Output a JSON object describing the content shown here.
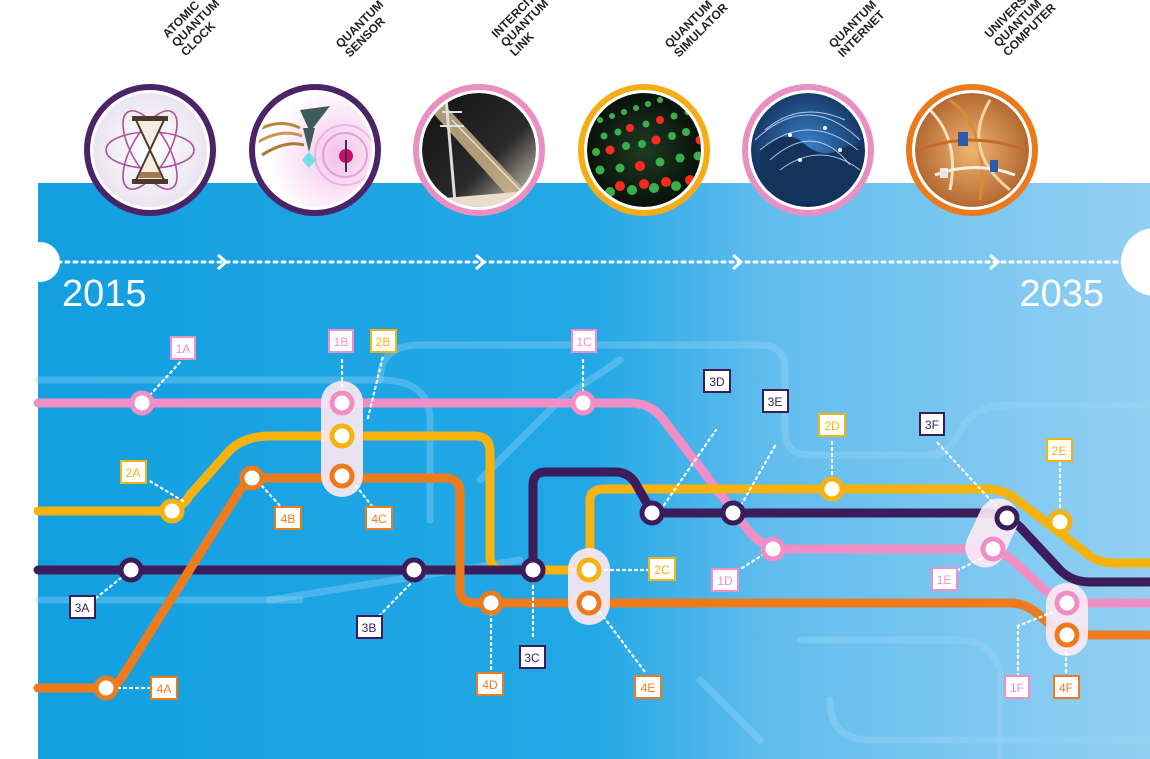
{
  "header": {
    "technologies": [
      {
        "label": [
          "ATOMIC",
          "QUANTUM",
          "CLOCK"
        ],
        "ring_color": "#4a2466",
        "icon": "atomic-clock-icon"
      },
      {
        "label": [
          "QUANTUM",
          "SENSOR"
        ],
        "ring_color": "#4a2466",
        "icon": "quantum-sensor-icon"
      },
      {
        "label": [
          "INTERCITY",
          "QUANTUM",
          "LINK"
        ],
        "ring_color": "#e98fc2",
        "icon": "quantum-link-icon"
      },
      {
        "label": [
          "QUANTUM",
          "SIMULATOR"
        ],
        "ring_color": "#f5ad17",
        "icon": "quantum-simulator-icon"
      },
      {
        "label": [
          "QUANTUM",
          "INTERNET"
        ],
        "ring_color": "#e98fc2",
        "icon": "quantum-internet-icon"
      },
      {
        "label": [
          "UNIVERSAL",
          "QUANTUM",
          "COMPUTER"
        ],
        "ring_color": "#ea7a1c",
        "icon": "quantum-computer-icon"
      }
    ]
  },
  "timeline": {
    "start_year": "2015",
    "end_year": "2035"
  },
  "colors": {
    "line1": "#f08fc5",
    "line2": "#f6b20f",
    "line3": "#3c1d5c",
    "line4": "#ec7b1e",
    "background_left": "#129fe0",
    "background_right": "#8ccdf0"
  },
  "lines": [
    {
      "id": "1",
      "color": "#f08fc5",
      "milestones": [
        "1A",
        "1B",
        "1C",
        "1D",
        "1E",
        "1F"
      ]
    },
    {
      "id": "2",
      "color": "#f6b20f",
      "milestones": [
        "2A",
        "2B",
        "2C",
        "2D",
        "2E"
      ]
    },
    {
      "id": "3",
      "color": "#3c1d5c",
      "milestones": [
        "3A",
        "3B",
        "3C",
        "3D",
        "3E",
        "3F"
      ]
    },
    {
      "id": "4",
      "color": "#ec7b1e",
      "milestones": [
        "4A",
        "4B",
        "4C",
        "4D",
        "4E",
        "4F"
      ]
    }
  ]
}
